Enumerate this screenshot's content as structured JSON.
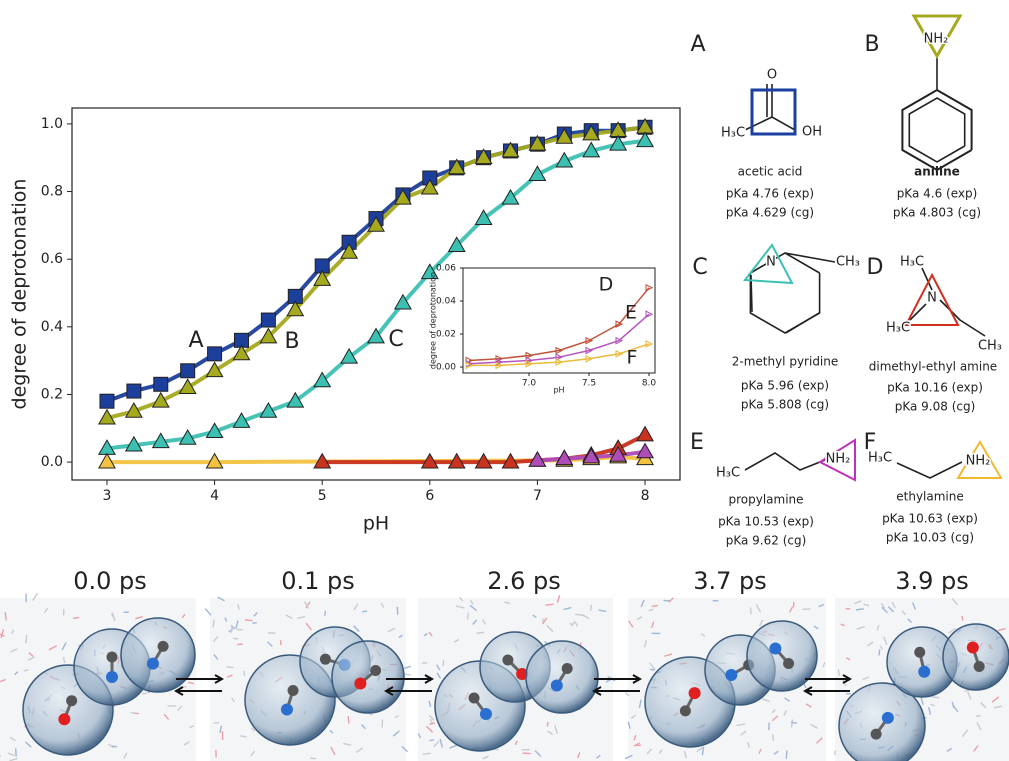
{
  "chart_data": [
    {
      "type": "line",
      "xlabel": "pH",
      "ylabel": "degree of deprotonation",
      "xlim": [
        2.675,
        8.325
      ],
      "ylim": [
        -0.053,
        1.047
      ],
      "xticks": [
        3,
        4,
        5,
        6,
        7,
        8
      ],
      "yticks": [
        {
          "value": 0,
          "label": "0.0"
        },
        0.2,
        0.4,
        0.6,
        0.8,
        {
          "value": 1,
          "label": "1.0"
        }
      ],
      "series": [
        {
          "name": "A",
          "color": "#1d3f9c",
          "marker": "square",
          "x": [
            3,
            3.25,
            3.5,
            3.75,
            4,
            4.25,
            4.5,
            4.75,
            5,
            5.25,
            5.5,
            5.75,
            6,
            6.25,
            6.5,
            6.75,
            7,
            7.25,
            7.5,
            7.75,
            8
          ],
          "values": [
            0.18,
            0.21,
            0.23,
            0.27,
            0.32,
            0.36,
            0.42,
            0.49,
            0.58,
            0.65,
            0.72,
            0.79,
            0.84,
            0.87,
            0.9,
            0.92,
            0.94,
            0.97,
            0.98,
            0.98,
            0.99
          ]
        },
        {
          "name": "B",
          "color": "#a5a91e",
          "marker": "triangle",
          "x": [
            3,
            3.25,
            3.5,
            3.75,
            4,
            4.25,
            4.5,
            4.75,
            5,
            5.25,
            5.5,
            5.75,
            6,
            6.25,
            6.5,
            6.75,
            7,
            7.25,
            7.5,
            7.75,
            8
          ],
          "values": [
            0.13,
            0.15,
            0.18,
            0.22,
            0.27,
            0.32,
            0.37,
            0.45,
            0.54,
            0.62,
            0.7,
            0.78,
            0.81,
            0.87,
            0.9,
            0.92,
            0.94,
            0.96,
            0.97,
            0.98,
            0.99
          ]
        },
        {
          "name": "C",
          "color": "#3cc0b2",
          "marker": "triangle",
          "x": [
            3,
            3.25,
            3.5,
            3.75,
            4,
            4.25,
            4.5,
            4.75,
            5,
            5.25,
            5.5,
            5.75,
            6,
            6.25,
            6.5,
            6.75,
            7,
            7.25,
            7.5,
            7.75,
            8
          ],
          "values": [
            0.04,
            0.05,
            0.06,
            0.07,
            0.09,
            0.12,
            0.15,
            0.18,
            0.24,
            0.31,
            0.37,
            0.47,
            0.56,
            0.64,
            0.72,
            0.78,
            0.85,
            0.89,
            0.92,
            0.94,
            0.95
          ]
        },
        {
          "color": "#f2c240",
          "marker": "triangle",
          "x": [
            3,
            4,
            7.25,
            7.5,
            7.75,
            8
          ],
          "values": [
            0,
            0,
            0.005,
            0.01,
            0.015,
            0.01
          ]
        },
        {
          "color": "#c8321e",
          "marker": "triangle",
          "x": [
            5,
            6,
            6.25,
            6.5,
            6.75,
            7,
            7.25,
            7.5,
            7.75,
            8
          ],
          "values": [
            0,
            0,
            0,
            0,
            0,
            0.005,
            0.01,
            0.02,
            0.04,
            0.08
          ]
        },
        {
          "color": "#b04cb8",
          "marker": "triangle",
          "x": [
            7,
            7.25,
            7.5,
            7.75,
            8
          ],
          "values": [
            0.005,
            0.01,
            0.015,
            0.02,
            0.03
          ]
        }
      ]
    },
    {
      "type": "line",
      "xlabel": "pH",
      "ylabel": "degree of deprotonation",
      "xlim": [
        6.45,
        8.05
      ],
      "ylim": [
        -0.0036,
        0.06
      ],
      "xticks": [
        {
          "value": 7,
          "label": "7.0"
        },
        7.5,
        {
          "value": 8,
          "label": "8.0"
        }
      ],
      "yticks": [
        {
          "value": 0,
          "label": "0.00"
        },
        {
          "value": 0.02,
          "label": "0.02"
        },
        {
          "value": 0.04,
          "label": "0.04"
        },
        {
          "value": 0.06,
          "label": "0.06"
        }
      ],
      "series": [
        {
          "name": "D",
          "color": "#c04a30",
          "marker": "right",
          "x": [
            6.5,
            6.75,
            7,
            7.25,
            7.5,
            7.75,
            8
          ],
          "values": [
            0.004,
            0.005,
            0.007,
            0.01,
            0.016,
            0.026,
            0.048
          ]
        },
        {
          "name": "E",
          "color": "#b04cb8",
          "marker": "right",
          "x": [
            6.5,
            6.75,
            7,
            7.25,
            7.5,
            7.75,
            8
          ],
          "values": [
            0.002,
            0.003,
            0.004,
            0.006,
            0.01,
            0.016,
            0.032
          ]
        },
        {
          "name": "F",
          "color": "#e8b830",
          "marker": "right",
          "x": [
            6.5,
            6.75,
            7,
            7.25,
            7.5,
            7.75,
            8
          ],
          "values": [
            0.001,
            0.001,
            0.002,
            0.003,
            0.005,
            0.008,
            0.014
          ]
        }
      ]
    }
  ],
  "molecules": [
    {
      "label": "A",
      "name": "acetic acid",
      "pka": [
        "pKa 4.76 (exp)",
        "pKa 4.629 (cg)"
      ],
      "atoms": [
        "O",
        "H₃C",
        "OH"
      ]
    },
    {
      "label": "B",
      "name": "aniline",
      "pka": [
        "pKa 4.6 (exp)",
        "pKa 4.803 (cg)"
      ],
      "atoms": [
        "NH₂"
      ]
    },
    {
      "label": "C",
      "name": "2-methyl pyridine",
      "pka": [
        "pKa 5.96 (exp)",
        "pKa 5.808 (cg)"
      ],
      "atoms": [
        "N",
        "CH₃"
      ]
    },
    {
      "label": "D",
      "name": "dimethyl-ethyl amine",
      "pka": [
        "pKa 10.16 (exp)",
        "pKa 9.08 (cg)"
      ],
      "atoms": [
        "H₃C",
        "N",
        "H₃C",
        "CH₃"
      ]
    },
    {
      "label": "E",
      "name": "propylamine",
      "pka": [
        "pKa 10.53 (exp)",
        "pKa 9.62 (cg)"
      ],
      "atoms": [
        "H₃C",
        "NH₂"
      ]
    },
    {
      "label": "F",
      "name": "ethylamine",
      "pka": [
        "pKa 10.63 (exp)",
        "pKa 10.03 (cg)"
      ],
      "atoms": [
        "H₃C",
        "NH₂"
      ]
    }
  ],
  "snapshots": {
    "times": [
      "0.0 ps",
      "0.1 ps",
      "2.6 ps",
      "3.7 ps",
      "3.9 ps"
    ]
  }
}
